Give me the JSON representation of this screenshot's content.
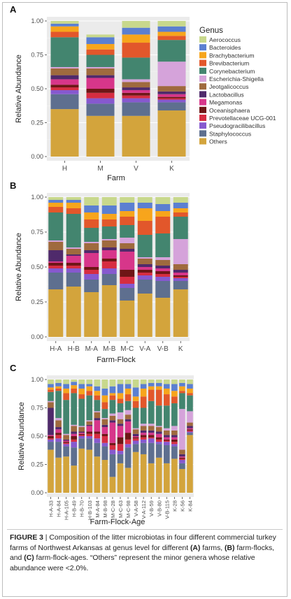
{
  "legend": {
    "title": "Genus",
    "genera": [
      {
        "name": "Aerococcus",
        "color": "#c8d88c"
      },
      {
        "name": "Bacteroides",
        "color": "#5b7fd1"
      },
      {
        "name": "Brachybacterium",
        "color": "#f7a51c"
      },
      {
        "name": "Brevibacterium",
        "color": "#e2572b"
      },
      {
        "name": "Corynebacterium",
        "color": "#43856f"
      },
      {
        "name": "Escherichia-Shigella",
        "color": "#d5a3da"
      },
      {
        "name": "Jeotgalicoccus",
        "color": "#9f6a3e"
      },
      {
        "name": "Lactobacillus",
        "color": "#4f2a6b"
      },
      {
        "name": "Megamonas",
        "color": "#d7368a"
      },
      {
        "name": "Oceanisphaera",
        "color": "#6e1616"
      },
      {
        "name": "Prevotellaceae UCG-001",
        "color": "#d62d41"
      },
      {
        "name": "Pseudogracilibacillus",
        "color": "#8659cf"
      },
      {
        "name": "Staphylococcus",
        "color": "#5e6f8f"
      },
      {
        "name": "Others",
        "color": "#d3a43c"
      }
    ]
  },
  "chart_data": [
    {
      "panel_label": "A",
      "type": "bar",
      "stacked": true,
      "xlabel": "Farm",
      "ylabel": "Relative Abundance",
      "ylim": [
        0,
        1
      ],
      "yticks": [
        "0.00",
        "0.25",
        "0.50",
        "0.75",
        "1.00"
      ],
      "categories": [
        "H",
        "M",
        "V",
        "K"
      ],
      "stack_order_bottom_to_top": [
        "Others",
        "Staphylococcus",
        "Pseudogracilibacillus",
        "Prevotellaceae UCG-001",
        "Oceanisphaera",
        "Megamonas",
        "Lactobacillus",
        "Jeotgalicoccus",
        "Escherichia-Shigella",
        "Corynebacterium",
        "Brevibacterium",
        "Brachybacterium",
        "Bacteroides",
        "Aerococcus"
      ],
      "series": [
        {
          "name": "Others",
          "values": [
            0.35,
            0.3,
            0.3,
            0.34
          ]
        },
        {
          "name": "Staphylococcus",
          "values": [
            0.11,
            0.09,
            0.1,
            0.06
          ]
        },
        {
          "name": "Pseudogracilibacillus",
          "values": [
            0.03,
            0.04,
            0.03,
            0.02
          ]
        },
        {
          "name": "Prevotellaceae UCG-001",
          "values": [
            0.02,
            0.04,
            0.02,
            0.01
          ]
        },
        {
          "name": "Oceanisphaera",
          "values": [
            0.02,
            0.03,
            0.02,
            0.01
          ]
        },
        {
          "name": "Megamonas",
          "values": [
            0.04,
            0.08,
            0.02,
            0.02
          ]
        },
        {
          "name": "Lactobacillus",
          "values": [
            0.03,
            0.02,
            0.02,
            0.02
          ]
        },
        {
          "name": "Jeotgalicoccus",
          "values": [
            0.05,
            0.05,
            0.04,
            0.04
          ]
        },
        {
          "name": "Escherichia-Shigella",
          "values": [
            0.01,
            0.01,
            0.02,
            0.18
          ]
        },
        {
          "name": "Corynebacterium",
          "values": [
            0.22,
            0.09,
            0.16,
            0.16
          ]
        },
        {
          "name": "Brevibacterium",
          "values": [
            0.04,
            0.04,
            0.11,
            0.03
          ]
        },
        {
          "name": "Brachybacterium",
          "values": [
            0.04,
            0.04,
            0.06,
            0.03
          ]
        },
        {
          "name": "Bacteroides",
          "values": [
            0.02,
            0.05,
            0.05,
            0.04
          ]
        },
        {
          "name": "Aerococcus",
          "values": [
            0.02,
            0.02,
            0.05,
            0.04
          ]
        }
      ]
    },
    {
      "panel_label": "B",
      "type": "bar",
      "stacked": true,
      "xlabel": "Farm-Flock",
      "ylabel": "Relative Abundance",
      "ylim": [
        0,
        1
      ],
      "yticks": [
        "0.00",
        "0.25",
        "0.50",
        "0.75",
        "1.00"
      ],
      "categories": [
        "H-A",
        "H-B",
        "M-A",
        "M-B",
        "M-C",
        "V-A",
        "V-B",
        "K"
      ],
      "series": [
        {
          "name": "Others",
          "values": [
            0.34,
            0.36,
            0.32,
            0.37,
            0.26,
            0.31,
            0.28,
            0.34
          ]
        },
        {
          "name": "Staphylococcus",
          "values": [
            0.12,
            0.1,
            0.09,
            0.08,
            0.09,
            0.1,
            0.12,
            0.06
          ]
        },
        {
          "name": "Pseudogracilibacillus",
          "values": [
            0.03,
            0.03,
            0.04,
            0.04,
            0.03,
            0.03,
            0.03,
            0.02
          ]
        },
        {
          "name": "Prevotellaceae UCG-001",
          "values": [
            0.02,
            0.02,
            0.03,
            0.05,
            0.05,
            0.02,
            0.02,
            0.01
          ]
        },
        {
          "name": "Oceanisphaera",
          "values": [
            0.02,
            0.02,
            0.02,
            0.02,
            0.05,
            0.02,
            0.02,
            0.01
          ]
        },
        {
          "name": "Megamonas",
          "values": [
            0.01,
            0.05,
            0.1,
            0.06,
            0.13,
            0.02,
            0.02,
            0.02
          ]
        },
        {
          "name": "Lactobacillus",
          "values": [
            0.08,
            0.01,
            0.02,
            0.02,
            0.02,
            0.02,
            0.02,
            0.02
          ]
        },
        {
          "name": "Jeotgalicoccus",
          "values": [
            0.06,
            0.04,
            0.05,
            0.05,
            0.04,
            0.04,
            0.04,
            0.04
          ]
        },
        {
          "name": "Escherichia-Shigella",
          "values": [
            0.01,
            0.01,
            0.01,
            0.01,
            0.04,
            0.01,
            0.02,
            0.18
          ]
        },
        {
          "name": "Corynebacterium",
          "values": [
            0.2,
            0.24,
            0.1,
            0.09,
            0.09,
            0.16,
            0.17,
            0.16
          ]
        },
        {
          "name": "Brevibacterium",
          "values": [
            0.04,
            0.04,
            0.06,
            0.05,
            0.06,
            0.1,
            0.12,
            0.03
          ]
        },
        {
          "name": "Brachybacterium",
          "values": [
            0.03,
            0.04,
            0.05,
            0.04,
            0.04,
            0.09,
            0.04,
            0.03
          ]
        },
        {
          "name": "Bacteroides",
          "values": [
            0.02,
            0.02,
            0.05,
            0.06,
            0.06,
            0.04,
            0.05,
            0.04
          ]
        },
        {
          "name": "Aerococcus",
          "values": [
            0.02,
            0.02,
            0.06,
            0.06,
            0.04,
            0.04,
            0.05,
            0.04
          ]
        }
      ]
    },
    {
      "panel_label": "C",
      "type": "bar",
      "stacked": true,
      "xlabel": "Farm-Flock-Age",
      "ylabel": "Relative Abundance",
      "ylim": [
        0,
        1
      ],
      "yticks": [
        "0.00",
        "0.25",
        "0.50",
        "0.75",
        "1.00"
      ],
      "categories": [
        "H-A-33",
        "H-A-84",
        "H-A-105",
        "H-B-49",
        "H-B-70",
        "H-B-103",
        "M-A-84",
        "M-B-98",
        "M-C-28",
        "M-C-63",
        "M-C-98",
        "V-A-58",
        "V-A-112",
        "V-B-59",
        "V-B-80",
        "V-B-115",
        "K-28",
        "K-56",
        "K-84"
      ],
      "series": [
        {
          "name": "Others",
          "values": [
            0.38,
            0.31,
            0.32,
            0.24,
            0.39,
            0.38,
            0.32,
            0.29,
            0.14,
            0.26,
            0.22,
            0.36,
            0.34,
            0.26,
            0.31,
            0.26,
            0.3,
            0.21,
            0.51
          ]
        },
        {
          "name": "Staphylococcus",
          "values": [
            0.07,
            0.14,
            0.09,
            0.16,
            0.09,
            0.1,
            0.12,
            0.12,
            0.2,
            0.08,
            0.18,
            0.07,
            0.1,
            0.18,
            0.12,
            0.16,
            0.11,
            0.05,
            0.02
          ]
        },
        {
          "name": "Pseudogracilibacillus",
          "values": [
            0.02,
            0.03,
            0.02,
            0.05,
            0.02,
            0.02,
            0.04,
            0.03,
            0.04,
            0.03,
            0.03,
            0.03,
            0.03,
            0.04,
            0.02,
            0.03,
            0.02,
            0.03,
            0.01
          ]
        },
        {
          "name": "Prevotellaceae UCG-001",
          "values": [
            0.01,
            0.03,
            0.01,
            0.02,
            0.01,
            0.02,
            0.04,
            0.06,
            0.04,
            0.06,
            0.04,
            0.02,
            0.02,
            0.01,
            0.02,
            0.01,
            0.02,
            0.01,
            0.01
          ]
        },
        {
          "name": "Oceanisphaera",
          "values": [
            0.02,
            0.02,
            0.01,
            0.03,
            0.01,
            0.02,
            0.02,
            0.02,
            0.02,
            0.06,
            0.06,
            0.01,
            0.02,
            0.02,
            0.02,
            0.01,
            0.02,
            0.01,
            0.01
          ]
        },
        {
          "name": "Megamonas",
          "values": [
            0.01,
            0.03,
            0.01,
            0.02,
            0.01,
            0.05,
            0.1,
            0.06,
            0.18,
            0.1,
            0.1,
            0.01,
            0.02,
            0.02,
            0.03,
            0.02,
            0.02,
            0.01,
            0.01
          ]
        },
        {
          "name": "Lactobacillus",
          "values": [
            0.24,
            0.02,
            0.01,
            0.02,
            0.01,
            0.01,
            0.02,
            0.02,
            0.02,
            0.02,
            0.02,
            0.02,
            0.02,
            0.02,
            0.02,
            0.02,
            0.02,
            0.02,
            0.02
          ]
        },
        {
          "name": "Jeotgalicoccus",
          "values": [
            0.05,
            0.06,
            0.04,
            0.05,
            0.04,
            0.03,
            0.05,
            0.05,
            0.04,
            0.04,
            0.04,
            0.04,
            0.04,
            0.04,
            0.04,
            0.04,
            0.04,
            0.04,
            0.03
          ]
        },
        {
          "name": "Escherichia-Shigella",
          "values": [
            0.01,
            0.02,
            0.01,
            0.01,
            0.01,
            0.01,
            0.01,
            0.01,
            0.02,
            0.06,
            0.04,
            0.01,
            0.02,
            0.02,
            0.01,
            0.02,
            0.04,
            0.36,
            0.1
          ]
        },
        {
          "name": "Corynebacterium",
          "values": [
            0.08,
            0.24,
            0.3,
            0.28,
            0.24,
            0.22,
            0.1,
            0.08,
            0.12,
            0.08,
            0.08,
            0.18,
            0.14,
            0.2,
            0.18,
            0.2,
            0.2,
            0.14,
            0.14
          ]
        },
        {
          "name": "Brevibacterium",
          "values": [
            0.02,
            0.02,
            0.06,
            0.04,
            0.04,
            0.04,
            0.04,
            0.06,
            0.04,
            0.04,
            0.06,
            0.06,
            0.1,
            0.1,
            0.14,
            0.1,
            0.06,
            0.02,
            0.02
          ]
        },
        {
          "name": "Brachybacterium",
          "values": [
            0.02,
            0.02,
            0.04,
            0.03,
            0.05,
            0.04,
            0.04,
            0.06,
            0.02,
            0.05,
            0.05,
            0.04,
            0.07,
            0.03,
            0.03,
            0.05,
            0.05,
            0.04,
            0.04
          ]
        },
        {
          "name": "Bacteroides",
          "values": [
            0.03,
            0.03,
            0.04,
            0.03,
            0.04,
            0.02,
            0.04,
            0.06,
            0.06,
            0.08,
            0.04,
            0.08,
            0.04,
            0.03,
            0.03,
            0.04,
            0.06,
            0.03,
            0.04
          ]
        },
        {
          "name": "Aerococcus",
          "values": [
            0.04,
            0.03,
            0.04,
            0.02,
            0.04,
            0.04,
            0.06,
            0.08,
            0.06,
            0.04,
            0.04,
            0.07,
            0.04,
            0.03,
            0.03,
            0.04,
            0.04,
            0.03,
            0.04
          ]
        }
      ]
    }
  ],
  "caption": {
    "figure_label": "FIGURE 3",
    "separator": " | ",
    "p1": "Composition of the litter microbiotas in four different commercial turkey farms of Northwest Arkansas at genus level for different ",
    "tag_a": "(A)",
    "p2": " farms, ",
    "tag_b": "(B)",
    "p3": " farm-flocks, and ",
    "tag_c": "(C)",
    "p4": " farm-flock-ages. “Others” represent the minor genera whose relative abundance were <2.0%."
  }
}
